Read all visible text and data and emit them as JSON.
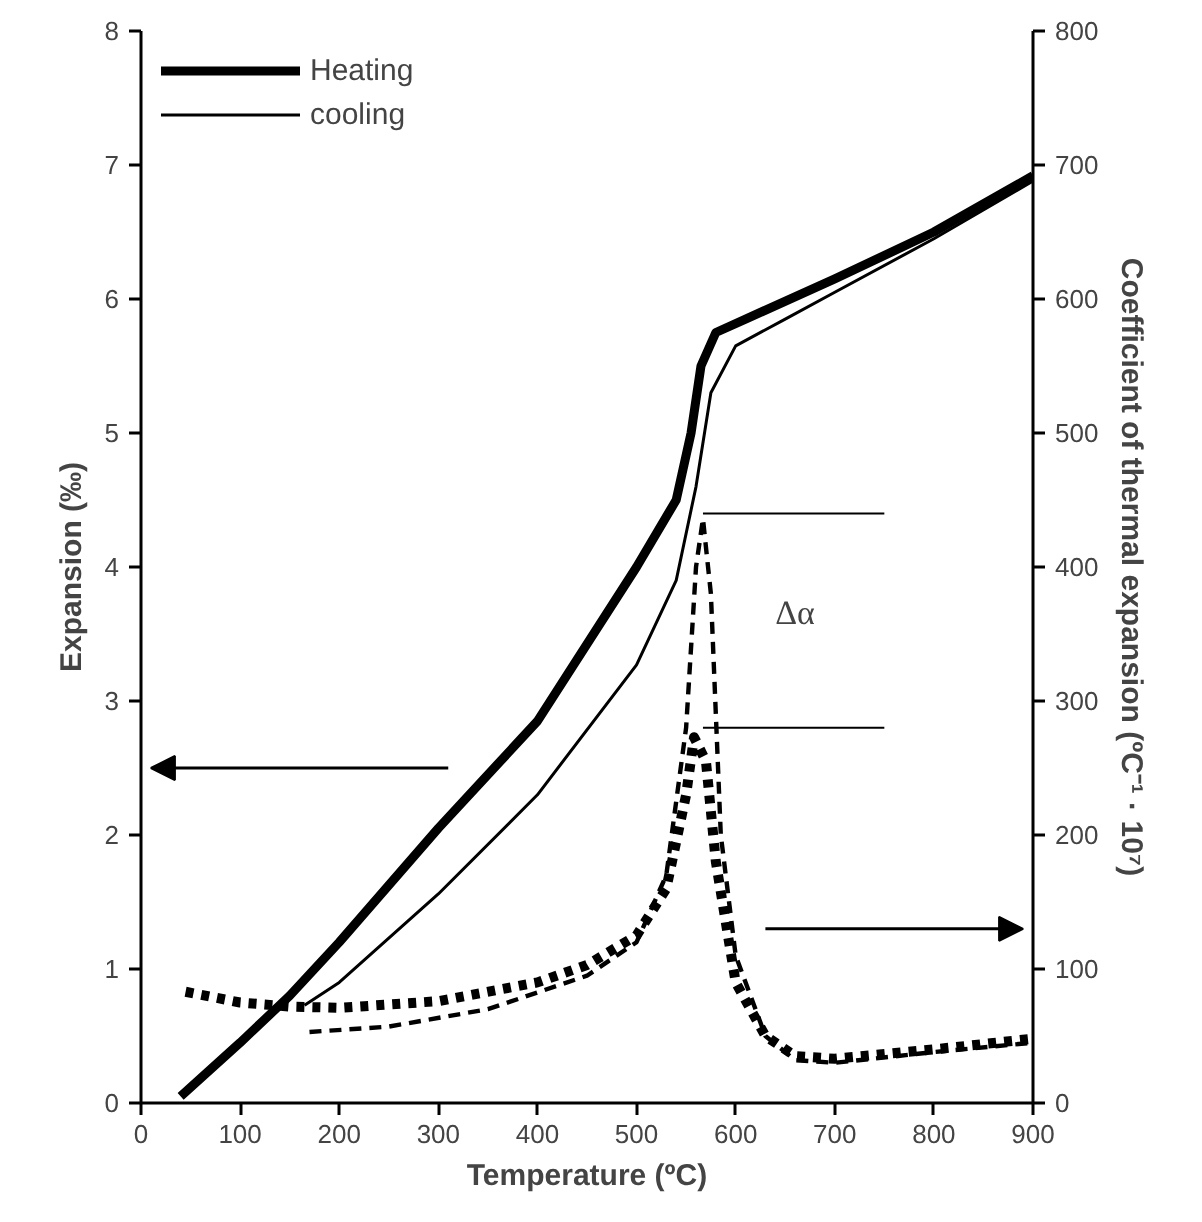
{
  "chart_data": {
    "type": "line",
    "xlabel": "Temperature (ºC)",
    "ylabel": "Expansion (‰)",
    "y2label": "Coefficient of thermal expansion (ºC⁻¹ · 10⁷)",
    "xlim": [
      0,
      900
    ],
    "xticks": [
      0,
      100,
      200,
      300,
      400,
      500,
      600,
      700,
      800,
      900
    ],
    "ylim": [
      0,
      8
    ],
    "yticks": [
      0,
      1,
      2,
      3,
      4,
      5,
      6,
      7,
      8
    ],
    "y2lim": [
      0,
      800
    ],
    "y2ticks": [
      0,
      100,
      200,
      300,
      400,
      500,
      600,
      700,
      800
    ],
    "grid": false,
    "legend": "top left",
    "series": [
      {
        "name": "Heating",
        "color": "#000000",
        "line_style": "solid",
        "x": [
          40,
          100,
          150,
          200,
          300,
          400,
          500,
          540,
          555,
          565,
          580,
          610,
          700,
          800,
          900
        ],
        "values": [
          0.05,
          0.45,
          0.8,
          1.2,
          2.05,
          2.85,
          4.0,
          4.5,
          5.0,
          5.5,
          5.75,
          5.85,
          6.15,
          6.5,
          6.92
        ]
      },
      {
        "name": "cooling",
        "color": "#000000",
        "line_style": "solid",
        "x": [
          165,
          200,
          300,
          400,
          500,
          540,
          560,
          575,
          600,
          650,
          700,
          800,
          900
        ],
        "values": [
          0.73,
          0.9,
          1.56,
          2.3,
          3.27,
          3.9,
          4.6,
          5.3,
          5.65,
          5.85,
          6.05,
          6.45,
          6.88
        ]
      },
      {
        "color": "#000000",
        "line_style": "dotted",
        "axis": "y2",
        "x": [
          45,
          100,
          150,
          200,
          300,
          400,
          450,
          500,
          530,
          550,
          558,
          570,
          580,
          600,
          630,
          660,
          700,
          800,
          900
        ],
        "values": [
          83,
          75,
          72,
          71,
          76,
          90,
          103,
          125,
          160,
          230,
          273,
          255,
          180,
          90,
          50,
          35,
          33,
          40,
          48
        ]
      },
      {
        "color": "#000000",
        "line_style": "dashed",
        "axis": "y2",
        "x": [
          170,
          250,
          350,
          450,
          500,
          530,
          550,
          560,
          567,
          575,
          585,
          600,
          630,
          660,
          700,
          800,
          900
        ],
        "values": [
          53,
          57,
          70,
          95,
          120,
          170,
          280,
          400,
          436,
          380,
          200,
          110,
          50,
          32,
          30,
          38,
          45
        ]
      },
      {
        "type": "line",
        "color": "#000000",
        "line_style": "solid",
        "axis": "y2",
        "x": [
          567,
          750
        ],
        "values": [
          440,
          440
        ]
      },
      {
        "type": "line",
        "color": "#000000",
        "line_style": "solid",
        "axis": "y2",
        "x": [
          567,
          750
        ],
        "values": [
          280,
          280
        ]
      }
    ],
    "annotations": [
      "Δα"
    ]
  }
}
